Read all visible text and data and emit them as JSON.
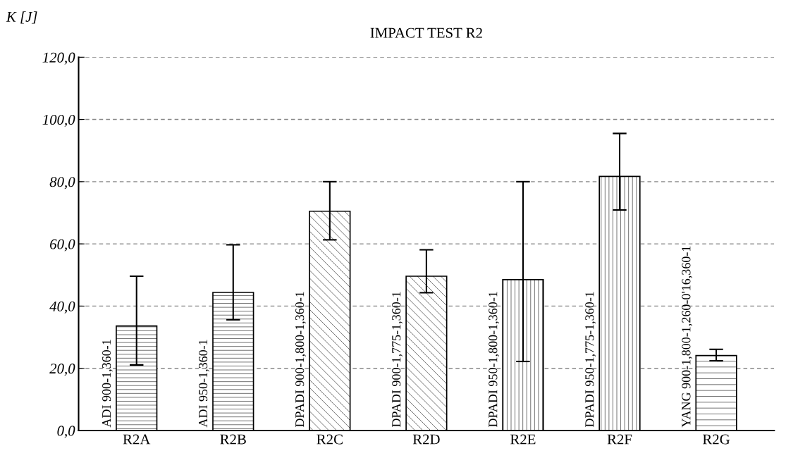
{
  "chart_data": {
    "type": "bar",
    "title": "IMPACT TEST R2",
    "ylabel": "K [J]",
    "categories": [
      "R2A",
      "R2B",
      "R2C",
      "R2D",
      "R2E",
      "R2F",
      "R2G"
    ],
    "values": [
      33.6,
      44.4,
      70.5,
      49.6,
      48.5,
      81.7,
      24.1
    ],
    "errors": [
      [
        21.1,
        49.6
      ],
      [
        35.6,
        59.7
      ],
      [
        61.3,
        80.0
      ],
      [
        44.3,
        58.1
      ],
      [
        22.2,
        80.0
      ],
      [
        70.9,
        95.5
      ],
      [
        22.4,
        26.1
      ]
    ],
    "ylim": [
      0,
      120
    ],
    "yticks": [
      {
        "value": 0,
        "label": "0,0"
      },
      {
        "value": 20,
        "label": "20,0"
      },
      {
        "value": 40,
        "label": "40,0"
      },
      {
        "value": 60,
        "label": "60,0"
      },
      {
        "value": 80,
        "label": "80,0"
      },
      {
        "value": 100,
        "label": "100,0"
      },
      {
        "value": 120,
        "label": "120,0"
      }
    ],
    "grid": "y",
    "annotations": [
      {
        "text": "ADI 900-1,360-1",
        "x": "R2A",
        "y": 0
      },
      {
        "text": "ADI 950-1,360-1",
        "x": "R2B",
        "y": 0
      },
      {
        "text": "DPADI 900-1,800-1,360-1",
        "x": "R2C",
        "y": 0
      },
      {
        "text": "DPADI 900-1,775-1,360-1",
        "x": "R2D",
        "y": 0
      },
      {
        "text": "DPADI 950-1,800-1,360-1",
        "x": "R2E",
        "y": 0
      },
      {
        "text": "DPADI 950-1,775-1,360-1",
        "x": "R2F",
        "y": 0
      },
      {
        "text": "YANG 900-1,800-1,260-0'16,360-1",
        "x": "R2G",
        "y": 0
      }
    ]
  }
}
